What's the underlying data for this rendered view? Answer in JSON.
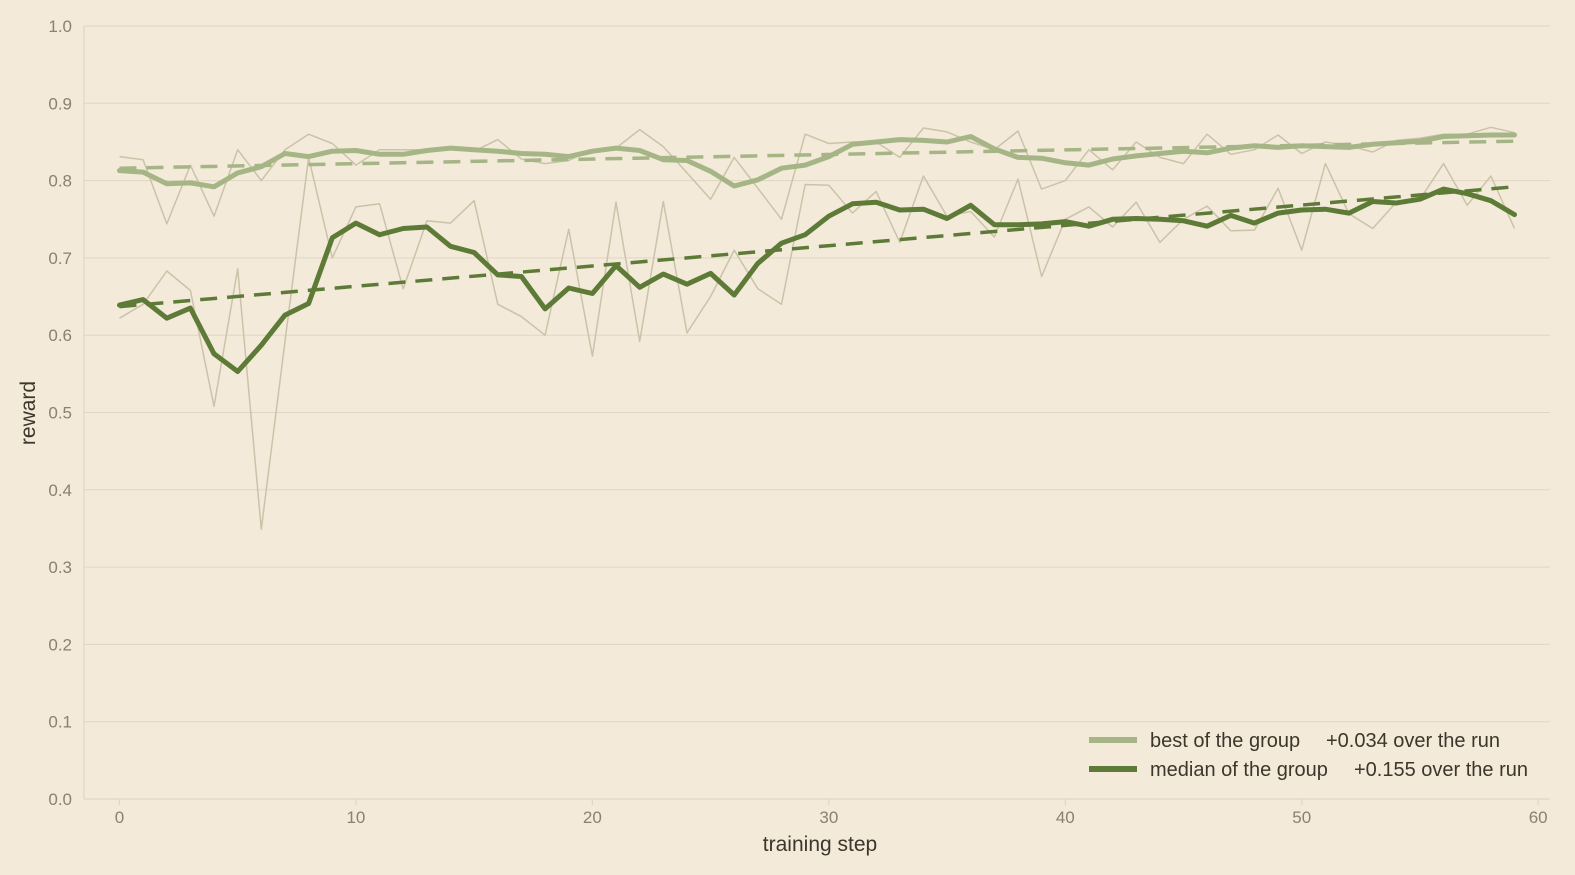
{
  "chart_data": {
    "type": "line",
    "xlabel": "training step",
    "ylabel": "reward",
    "xlim": [
      -1.5,
      60.5
    ],
    "ylim": [
      0,
      1.0
    ],
    "x_ticks": [
      0,
      10,
      20,
      30,
      40,
      50,
      60
    ],
    "y_ticks": [
      "0.0",
      "0.1",
      "0.2",
      "0.3",
      "0.4",
      "0.5",
      "0.6",
      "0.7",
      "0.8",
      "0.9",
      "1.0"
    ],
    "grid": "horizontal",
    "legend_position": "bottom-right",
    "colors": {
      "background": "#f3eada",
      "grid": "#e0d6c2",
      "raw": "#cbc3a8",
      "best": "#a6b585",
      "median": "#5e7a37"
    },
    "series": [
      {
        "name": "best of the group",
        "legend_label": "best of the group",
        "legend_note": "+0.034 over the run",
        "smoothed": [
          0.813,
          0.811,
          0.796,
          0.797,
          0.792,
          0.81,
          0.818,
          0.835,
          0.831,
          0.838,
          0.839,
          0.834,
          0.834,
          0.839,
          0.842,
          0.84,
          0.838,
          0.835,
          0.834,
          0.831,
          0.838,
          0.842,
          0.839,
          0.827,
          0.826,
          0.812,
          0.793,
          0.801,
          0.816,
          0.82,
          0.831,
          0.847,
          0.85,
          0.853,
          0.852,
          0.85,
          0.857,
          0.841,
          0.83,
          0.829,
          0.823,
          0.82,
          0.828,
          0.832,
          0.835,
          0.838,
          0.836,
          0.842,
          0.845,
          0.843,
          0.845,
          0.844,
          0.843,
          0.847,
          0.849,
          0.851,
          0.857,
          0.858,
          0.859,
          0.859
        ],
        "raw": [
          0.831,
          0.827,
          0.744,
          0.82,
          0.754,
          0.84,
          0.8,
          0.84,
          0.86,
          0.848,
          0.82,
          0.84,
          0.84,
          0.84,
          0.843,
          0.838,
          0.853,
          0.828,
          0.822,
          0.826,
          0.84,
          0.842,
          0.866,
          0.844,
          0.81,
          0.776,
          0.83,
          0.79,
          0.75,
          0.86,
          0.848,
          0.85,
          0.85,
          0.83,
          0.868,
          0.863,
          0.85,
          0.84,
          0.864,
          0.789,
          0.8,
          0.84,
          0.814,
          0.85,
          0.83,
          0.822,
          0.86,
          0.834,
          0.84,
          0.859,
          0.835,
          0.85,
          0.845,
          0.837,
          0.852,
          0.855,
          0.86,
          0.86,
          0.869,
          0.862
        ],
        "trend": [
          0.816,
          0.851
        ]
      },
      {
        "name": "median of the group",
        "legend_label": "median of the group",
        "legend_note": "+0.155 over the run",
        "smoothed": [
          0.639,
          0.646,
          0.622,
          0.635,
          0.576,
          0.553,
          0.587,
          0.626,
          0.641,
          0.726,
          0.745,
          0.73,
          0.738,
          0.74,
          0.715,
          0.707,
          0.678,
          0.676,
          0.634,
          0.661,
          0.654,
          0.69,
          0.662,
          0.679,
          0.666,
          0.68,
          0.652,
          0.693,
          0.719,
          0.73,
          0.754,
          0.77,
          0.772,
          0.762,
          0.763,
          0.751,
          0.768,
          0.743,
          0.743,
          0.744,
          0.747,
          0.741,
          0.75,
          0.751,
          0.75,
          0.748,
          0.741,
          0.755,
          0.745,
          0.758,
          0.762,
          0.763,
          0.758,
          0.773,
          0.771,
          0.776,
          0.789,
          0.783,
          0.774,
          0.756
        ],
        "raw": [
          0.622,
          0.64,
          0.683,
          0.658,
          0.508,
          0.686,
          0.349,
          0.592,
          0.83,
          0.7,
          0.766,
          0.77,
          0.66,
          0.748,
          0.745,
          0.774,
          0.64,
          0.624,
          0.6,
          0.737,
          0.573,
          0.772,
          0.592,
          0.773,
          0.603,
          0.65,
          0.71,
          0.66,
          0.64,
          0.795,
          0.794,
          0.758,
          0.786,
          0.72,
          0.806,
          0.754,
          0.76,
          0.727,
          0.802,
          0.676,
          0.75,
          0.766,
          0.74,
          0.772,
          0.72,
          0.75,
          0.767,
          0.735,
          0.736,
          0.79,
          0.71,
          0.822,
          0.757,
          0.738,
          0.772,
          0.776,
          0.822,
          0.768,
          0.806,
          0.738
        ],
        "trend": [
          0.637,
          0.792
        ]
      }
    ]
  }
}
